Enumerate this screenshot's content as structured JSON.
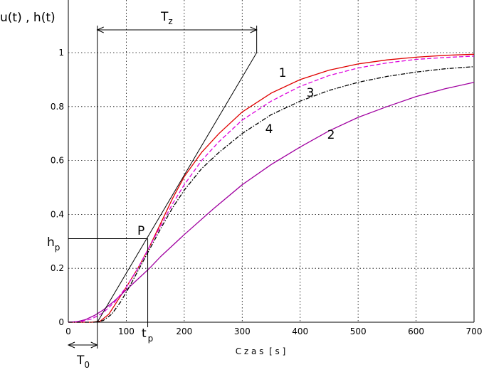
{
  "chart_data": {
    "type": "line",
    "title": "",
    "xlabel": "C z a s  [ s ]",
    "ylabel": "u(t) , h(t)",
    "xlim": [
      0,
      700
    ],
    "ylim": [
      0,
      1.05
    ],
    "grid": true,
    "x_ticks": [
      "0",
      "100",
      "200",
      "300",
      "400",
      "500",
      "600",
      "700"
    ],
    "x_tick_values": [
      0,
      100,
      200,
      300,
      400,
      500,
      600,
      700
    ],
    "y_ticks": [
      "0",
      "0.2",
      "0.4",
      "0.6",
      "0.8",
      "1"
    ],
    "y_tick_values": [
      0,
      0.2,
      0.4,
      0.6,
      0.8,
      1
    ],
    "series": [
      {
        "name": "1",
        "color": "#e00000",
        "style": "solid",
        "x": [
          0,
          40,
          55,
          70,
          85,
          100,
          120,
          140,
          160,
          180,
          200,
          230,
          260,
          300,
          350,
          400,
          450,
          500,
          550,
          600,
          650,
          700
        ],
        "y": [
          0,
          0,
          0.004,
          0.03,
          0.08,
          0.13,
          0.2,
          0.28,
          0.37,
          0.46,
          0.54,
          0.63,
          0.7,
          0.78,
          0.85,
          0.9,
          0.935,
          0.958,
          0.973,
          0.983,
          0.99,
          0.994
        ]
      },
      {
        "name": "2",
        "color": "#a000a0",
        "style": "solid",
        "x": [
          0,
          15,
          30,
          45,
          60,
          80,
          100,
          120,
          140,
          160,
          180,
          200,
          250,
          300,
          350,
          400,
          450,
          500,
          550,
          600,
          650,
          700
        ],
        "y": [
          0,
          0.002,
          0.01,
          0.025,
          0.045,
          0.08,
          0.12,
          0.16,
          0.2,
          0.245,
          0.285,
          0.325,
          0.42,
          0.51,
          0.585,
          0.65,
          0.71,
          0.76,
          0.8,
          0.837,
          0.866,
          0.89
        ]
      },
      {
        "name": "3",
        "color": "#dd00dd",
        "style": "dashed",
        "x": [
          0,
          20,
          40,
          60,
          80,
          100,
          120,
          140,
          160,
          180,
          200,
          230,
          260,
          300,
          350,
          400,
          450,
          500,
          550,
          600,
          650,
          700
        ],
        "y": [
          0,
          0.002,
          0.012,
          0.035,
          0.075,
          0.13,
          0.2,
          0.28,
          0.36,
          0.44,
          0.51,
          0.6,
          0.67,
          0.75,
          0.82,
          0.875,
          0.915,
          0.943,
          0.962,
          0.975,
          0.982,
          0.987
        ]
      },
      {
        "name": "4",
        "color": "#000000",
        "style": "dashdot",
        "x": [
          0,
          45,
          60,
          75,
          90,
          105,
          120,
          140,
          160,
          180,
          200,
          230,
          260,
          300,
          350,
          400,
          450,
          500,
          550,
          600,
          650,
          700
        ],
        "y": [
          0,
          0,
          0.006,
          0.03,
          0.075,
          0.13,
          0.19,
          0.27,
          0.35,
          0.425,
          0.49,
          0.57,
          0.63,
          0.7,
          0.77,
          0.82,
          0.86,
          0.89,
          0.912,
          0.928,
          0.94,
          0.948
        ]
      }
    ],
    "annotations": {
      "Tz": "T",
      "Tz_sub": "z",
      "T0": "T",
      "T0_sub": "0",
      "tp": "t",
      "tp_sub": "p",
      "hp": "h",
      "hp_sub": "p",
      "P": "P",
      "T0_value": 50,
      "tp_value": 137,
      "hp_value": 0.31,
      "tangent_end_x": 325,
      "tangent_end_y": 1
    }
  }
}
